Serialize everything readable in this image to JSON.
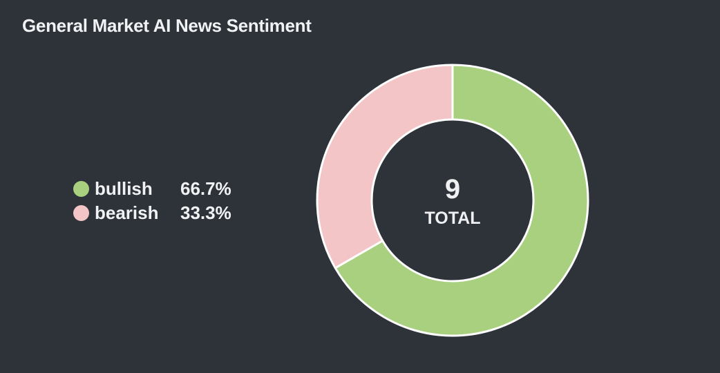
{
  "title": "General Market AI News Sentiment",
  "legend": [
    {
      "label": "bullish",
      "percent": "66.7%"
    },
    {
      "label": "bearish",
      "percent": "33.3%"
    }
  ],
  "center": {
    "value": "9",
    "label": "TOTAL"
  },
  "colors": {
    "background": "#2e333a",
    "bullish": "#a8d07f",
    "bearish": "#f4c5c7",
    "slice_border": "#ffffff"
  },
  "chart_data": {
    "type": "pie",
    "style": "donut",
    "title": "General Market AI News Sentiment",
    "total": 9,
    "series": [
      {
        "name": "bullish",
        "value": 6,
        "percent": 66.7
      },
      {
        "name": "bearish",
        "value": 3,
        "percent": 33.3
      }
    ],
    "legend_position": "left"
  }
}
